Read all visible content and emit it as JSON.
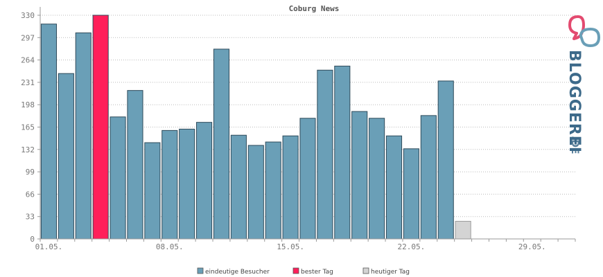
{
  "chart_data": {
    "type": "bar",
    "title": "Coburg News",
    "y_ticks": [
      "0",
      "33",
      "66",
      "99",
      "132",
      "165",
      "198",
      "231",
      "264",
      "297",
      "330"
    ],
    "ylim": [
      0,
      330
    ],
    "x_tick_labels": [
      {
        "label": "01.05.",
        "index": 1
      },
      {
        "label": "08.05.",
        "index": 8
      },
      {
        "label": "15.05.",
        "index": 15
      },
      {
        "label": "22.05.",
        "index": 22
      },
      {
        "label": "29.05.",
        "index": 29
      }
    ],
    "days": 31,
    "grid": true,
    "legend_position": "bottom",
    "series": [
      {
        "name": "eindeutige Besucher",
        "color": "#6a9fb7"
      },
      {
        "name": "bester Tag",
        "color": "#ff1f5a"
      },
      {
        "name": "heutiger Tag",
        "color": "#d4d4d4"
      }
    ],
    "bars": [
      {
        "day": 1,
        "value": 317,
        "kind": "normal"
      },
      {
        "day": 2,
        "value": 244,
        "kind": "normal"
      },
      {
        "day": 3,
        "value": 304,
        "kind": "normal"
      },
      {
        "day": 4,
        "value": 330,
        "kind": "best"
      },
      {
        "day": 5,
        "value": 180,
        "kind": "normal"
      },
      {
        "day": 6,
        "value": 219,
        "kind": "normal"
      },
      {
        "day": 7,
        "value": 142,
        "kind": "normal"
      },
      {
        "day": 8,
        "value": 160,
        "kind": "normal"
      },
      {
        "day": 9,
        "value": 162,
        "kind": "normal"
      },
      {
        "day": 10,
        "value": 172,
        "kind": "normal"
      },
      {
        "day": 11,
        "value": 280,
        "kind": "normal"
      },
      {
        "day": 12,
        "value": 153,
        "kind": "normal"
      },
      {
        "day": 13,
        "value": 138,
        "kind": "normal"
      },
      {
        "day": 14,
        "value": 143,
        "kind": "normal"
      },
      {
        "day": 15,
        "value": 152,
        "kind": "normal"
      },
      {
        "day": 16,
        "value": 178,
        "kind": "normal"
      },
      {
        "day": 17,
        "value": 249,
        "kind": "normal"
      },
      {
        "day": 18,
        "value": 255,
        "kind": "normal"
      },
      {
        "day": 19,
        "value": 188,
        "kind": "normal"
      },
      {
        "day": 20,
        "value": 178,
        "kind": "normal"
      },
      {
        "day": 21,
        "value": 152,
        "kind": "normal"
      },
      {
        "day": 22,
        "value": 133,
        "kind": "normal"
      },
      {
        "day": 23,
        "value": 182,
        "kind": "normal"
      },
      {
        "day": 24,
        "value": 233,
        "kind": "normal"
      },
      {
        "day": 25,
        "value": 26,
        "kind": "today"
      }
    ]
  },
  "logo": {
    "text": "BLOGGEREI",
    "suffix": ".DE",
    "primary_color": "#3d6a8a",
    "accent_color": "#e34a6f"
  }
}
